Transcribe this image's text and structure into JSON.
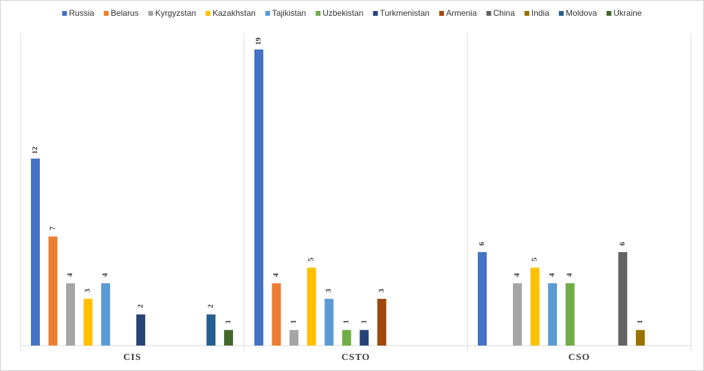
{
  "chart_data": {
    "type": "bar",
    "categories": [
      "CIS",
      "CSTO",
      "CSO"
    ],
    "series": [
      {
        "name": "Russia",
        "color": "#4472c4",
        "values": [
          12,
          19,
          6
        ]
      },
      {
        "name": "Belarus",
        "color": "#ed7d31",
        "values": [
          7,
          4,
          null
        ]
      },
      {
        "name": "Kyrgyzstan",
        "color": "#a5a5a5",
        "values": [
          4,
          1,
          4
        ]
      },
      {
        "name": "Kazakhstan",
        "color": "#ffc000",
        "values": [
          3,
          5,
          5
        ]
      },
      {
        "name": "Tajikistan",
        "color": "#5b9bd5",
        "values": [
          4,
          3,
          4
        ]
      },
      {
        "name": "Uzbekistan",
        "color": "#70ad47",
        "values": [
          null,
          1,
          4
        ]
      },
      {
        "name": "Turkmenistan",
        "color": "#264478",
        "values": [
          2,
          1,
          null
        ]
      },
      {
        "name": "Armenia",
        "color": "#9e480e",
        "values": [
          null,
          3,
          null
        ]
      },
      {
        "name": "China",
        "color": "#636363",
        "values": [
          null,
          null,
          6
        ]
      },
      {
        "name": "India",
        "color": "#997300",
        "values": [
          null,
          null,
          1
        ]
      },
      {
        "name": "Moldova",
        "color": "#255e91",
        "values": [
          2,
          null,
          null
        ]
      },
      {
        "name": "Ukraine",
        "color": "#43682b",
        "values": [
          1,
          null,
          null
        ]
      }
    ],
    "legend": "top",
    "data_labels": true
  }
}
